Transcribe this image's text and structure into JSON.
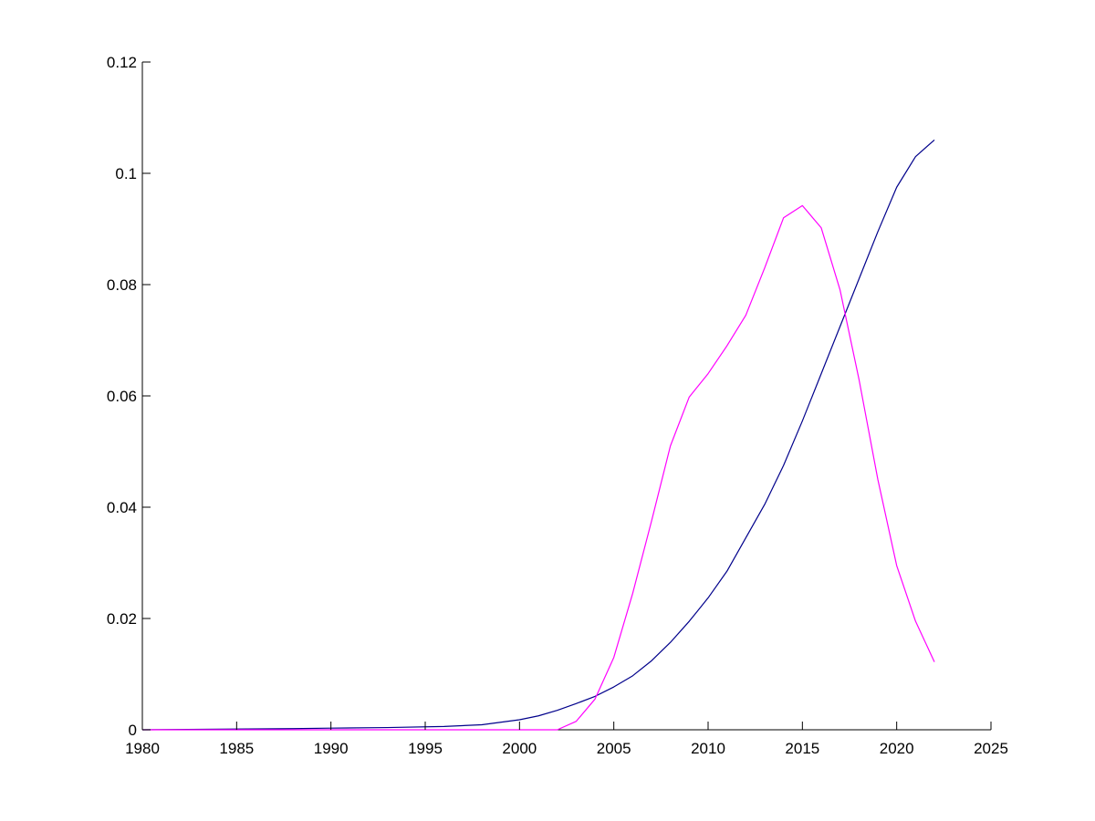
{
  "chart_data": {
    "type": "line",
    "title": "",
    "xlabel": "",
    "ylabel": "",
    "xlim": [
      1980,
      2025
    ],
    "ylim": [
      0,
      0.12
    ],
    "x_ticks": [
      1980,
      1985,
      1990,
      1995,
      2000,
      2005,
      2010,
      2015,
      2020,
      2025
    ],
    "y_ticks": [
      0,
      0.02,
      0.04,
      0.06,
      0.08,
      0.1,
      0.12
    ],
    "x_tick_labels": [
      "1980",
      "1985",
      "1990",
      "1995",
      "2000",
      "2005",
      "2010",
      "2015",
      "2020",
      "2025"
    ],
    "y_tick_labels": [
      "0",
      "0.02",
      "0.04",
      "0.06",
      "0.08",
      "0.1",
      "0.12"
    ],
    "grid": false,
    "legend": "none",
    "series": [
      {
        "color": "#00008b",
        "x": [
          1980,
          1984,
          1988,
          1990,
          1993,
          1996,
          1998,
          2000,
          2001,
          2002,
          2003,
          2004,
          2005,
          2006,
          2007,
          2008,
          2009,
          2010,
          2011,
          2012,
          2013,
          2014,
          2015,
          2016,
          2017,
          2018,
          2019,
          2020,
          2021,
          2022
        ],
        "y": [
          0.0,
          0.0001,
          0.0002,
          0.0003,
          0.0004,
          0.0006,
          0.0009,
          0.0018,
          0.0025,
          0.0035,
          0.0047,
          0.006,
          0.0077,
          0.0097,
          0.0124,
          0.0157,
          0.0195,
          0.0237,
          0.0285,
          0.0345,
          0.0405,
          0.0475,
          0.0555,
          0.064,
          0.0725,
          0.081,
          0.0895,
          0.0975,
          0.103,
          0.106
        ]
      },
      {
        "color": "#ff00ff",
        "x": [
          1980,
          2002,
          2003,
          2004,
          2005,
          2006,
          2007,
          2008,
          2009,
          2010,
          2011,
          2012,
          2013,
          2014,
          2015,
          2016,
          2017,
          2018,
          2019,
          2020,
          2021,
          2022
        ],
        "y": [
          0.0,
          0.0,
          0.0015,
          0.0055,
          0.013,
          0.0245,
          0.0375,
          0.051,
          0.0598,
          0.064,
          0.069,
          0.0745,
          0.083,
          0.092,
          0.0942,
          0.0902,
          0.079,
          0.063,
          0.045,
          0.0295,
          0.0195,
          0.0122
        ]
      }
    ]
  }
}
